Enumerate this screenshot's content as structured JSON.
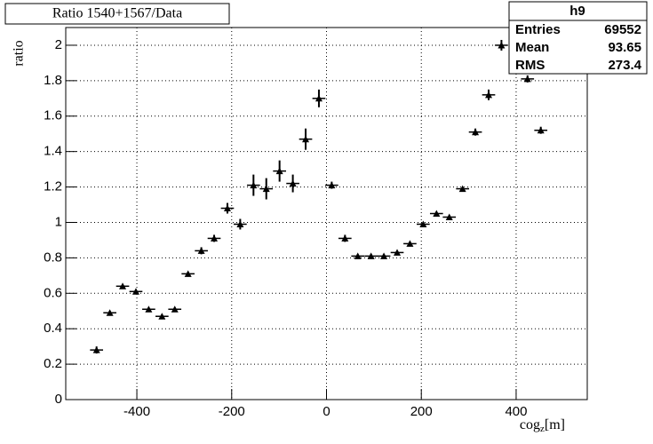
{
  "chart_data": {
    "type": "scatter",
    "title": "Ratio 1540+1567/Data",
    "y_label": "ratio",
    "x_label": {
      "base": "cog",
      "sub": "z",
      "unit": "[m]"
    },
    "stats": {
      "name": "h9",
      "rows": [
        [
          "Entries",
          "69552"
        ],
        [
          "Mean",
          "93.65"
        ],
        [
          "RMS",
          "273.4"
        ]
      ]
    },
    "x": [
      -485,
      -457,
      -430,
      -402,
      -375,
      -347,
      -320,
      -292,
      -264,
      -237,
      -209,
      -182,
      -154,
      -127,
      -99,
      -71,
      -44,
      -16,
      11,
      39,
      66,
      94,
      121,
      149,
      176,
      204,
      232,
      259,
      287,
      314,
      342,
      369,
      424,
      452
    ],
    "values": [
      0.28,
      0.49,
      0.64,
      0.61,
      0.51,
      0.47,
      0.51,
      0.71,
      0.84,
      0.91,
      1.08,
      0.99,
      1.21,
      1.19,
      1.29,
      1.22,
      1.47,
      1.7,
      1.21,
      0.91,
      0.81,
      0.81,
      0.81,
      0.83,
      0.88,
      0.99,
      1.05,
      1.03,
      1.19,
      1.51,
      1.72,
      2.0,
      1.81,
      1.52
    ],
    "errors": [
      0.02,
      0.01,
      0.01,
      0.01,
      0.01,
      0.01,
      0.01,
      0.01,
      0.02,
      0.02,
      0.03,
      0.03,
      0.06,
      0.06,
      0.06,
      0.05,
      0.06,
      0.05,
      0.02,
      0.02,
      0.01,
      0.01,
      0.01,
      0.01,
      0.01,
      0.01,
      0.01,
      0.01,
      0.01,
      0.02,
      0.03,
      0.03,
      0.02,
      0.02
    ],
    "xerr": 13.75,
    "color": "#000000",
    "xlim": [
      -550,
      550
    ],
    "xticks": [
      -400,
      -200,
      0,
      200,
      400
    ],
    "ylim": [
      0,
      2.1
    ],
    "yticks": [
      0,
      0.2,
      0.4,
      0.6,
      0.8,
      1,
      1.2,
      1.4,
      1.6,
      1.8,
      2
    ],
    "grid": true
  }
}
